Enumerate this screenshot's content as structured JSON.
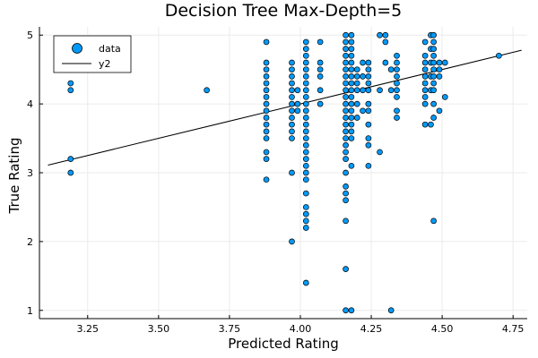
{
  "chart_data": {
    "type": "scatter",
    "title": "Decision Tree Max-Depth=5",
    "xlabel": "Predicted Rating",
    "ylabel": "True Rating",
    "xlim": [
      3.08,
      4.8
    ],
    "ylim": [
      0.88,
      5.12
    ],
    "xticks": [
      3.25,
      3.5,
      3.75,
      4.0,
      4.25,
      4.5,
      4.75
    ],
    "xtick_labels": [
      "3.25",
      "3.50",
      "3.75",
      "4.00",
      "4.25",
      "4.50",
      "4.75"
    ],
    "yticks": [
      1,
      2,
      3,
      4,
      5
    ],
    "ytick_labels": [
      "1",
      "2",
      "3",
      "4",
      "5"
    ],
    "grid": true,
    "legend_position": "top-left",
    "colors": {
      "scatter": "#009AF9",
      "line": "#000000",
      "grid": "#EBEBEB"
    },
    "series": [
      {
        "name": "data",
        "kind": "scatter",
        "points": [
          [
            3.19,
            4.3
          ],
          [
            3.19,
            4.2
          ],
          [
            3.19,
            3.2
          ],
          [
            3.19,
            3.0
          ],
          [
            3.67,
            4.2
          ],
          [
            3.88,
            4.9
          ],
          [
            3.88,
            4.6
          ],
          [
            3.88,
            4.5
          ],
          [
            3.88,
            4.4
          ],
          [
            3.88,
            4.3
          ],
          [
            3.88,
            4.2
          ],
          [
            3.88,
            4.1
          ],
          [
            3.88,
            4.0
          ],
          [
            3.88,
            3.9
          ],
          [
            3.88,
            3.8
          ],
          [
            3.88,
            3.7
          ],
          [
            3.88,
            3.6
          ],
          [
            3.88,
            3.5
          ],
          [
            3.88,
            3.3
          ],
          [
            3.88,
            3.2
          ],
          [
            3.88,
            2.9
          ],
          [
            3.97,
            4.6
          ],
          [
            3.97,
            4.5
          ],
          [
            3.97,
            4.4
          ],
          [
            3.97,
            4.3
          ],
          [
            3.97,
            4.2
          ],
          [
            3.97,
            4.1
          ],
          [
            3.97,
            4.0
          ],
          [
            3.97,
            3.9
          ],
          [
            3.97,
            3.8
          ],
          [
            3.97,
            3.7
          ],
          [
            3.97,
            3.6
          ],
          [
            3.97,
            3.5
          ],
          [
            3.97,
            3.0
          ],
          [
            3.97,
            2.0
          ],
          [
            3.99,
            4.2
          ],
          [
            3.99,
            4.0
          ],
          [
            3.99,
            3.9
          ],
          [
            4.02,
            4.9
          ],
          [
            4.02,
            4.8
          ],
          [
            4.02,
            4.7
          ],
          [
            4.02,
            4.6
          ],
          [
            4.02,
            4.5
          ],
          [
            4.02,
            4.4
          ],
          [
            4.02,
            4.3
          ],
          [
            4.02,
            4.2
          ],
          [
            4.02,
            4.1
          ],
          [
            4.02,
            4.0
          ],
          [
            4.02,
            3.9
          ],
          [
            4.02,
            3.8
          ],
          [
            4.02,
            3.7
          ],
          [
            4.02,
            3.6
          ],
          [
            4.02,
            3.5
          ],
          [
            4.02,
            3.4
          ],
          [
            4.02,
            3.3
          ],
          [
            4.02,
            3.2
          ],
          [
            4.02,
            3.1
          ],
          [
            4.02,
            3.0
          ],
          [
            4.02,
            2.9
          ],
          [
            4.02,
            2.7
          ],
          [
            4.02,
            2.5
          ],
          [
            4.02,
            2.4
          ],
          [
            4.02,
            2.3
          ],
          [
            4.02,
            2.2
          ],
          [
            4.02,
            1.4
          ],
          [
            4.07,
            4.9
          ],
          [
            4.07,
            4.6
          ],
          [
            4.07,
            4.5
          ],
          [
            4.07,
            4.4
          ],
          [
            4.07,
            4.2
          ],
          [
            4.07,
            4.0
          ],
          [
            4.16,
            5.0
          ],
          [
            4.16,
            4.9
          ],
          [
            4.16,
            4.8
          ],
          [
            4.16,
            4.7
          ],
          [
            4.16,
            4.6
          ],
          [
            4.16,
            4.5
          ],
          [
            4.16,
            4.4
          ],
          [
            4.16,
            4.3
          ],
          [
            4.16,
            4.2
          ],
          [
            4.16,
            4.1
          ],
          [
            4.16,
            4.0
          ],
          [
            4.16,
            3.9
          ],
          [
            4.16,
            3.8
          ],
          [
            4.16,
            3.7
          ],
          [
            4.16,
            3.6
          ],
          [
            4.16,
            3.5
          ],
          [
            4.16,
            3.4
          ],
          [
            4.16,
            3.3
          ],
          [
            4.16,
            3.2
          ],
          [
            4.16,
            3.0
          ],
          [
            4.16,
            2.8
          ],
          [
            4.16,
            2.7
          ],
          [
            4.16,
            2.6
          ],
          [
            4.16,
            2.3
          ],
          [
            4.16,
            1.6
          ],
          [
            4.16,
            1.0
          ],
          [
            4.18,
            5.0
          ],
          [
            4.18,
            4.9
          ],
          [
            4.18,
            4.8
          ],
          [
            4.18,
            4.7
          ],
          [
            4.18,
            4.6
          ],
          [
            4.18,
            4.5
          ],
          [
            4.18,
            4.4
          ],
          [
            4.18,
            4.3
          ],
          [
            4.18,
            4.2
          ],
          [
            4.18,
            4.1
          ],
          [
            4.18,
            4.0
          ],
          [
            4.18,
            3.9
          ],
          [
            4.18,
            3.8
          ],
          [
            4.18,
            3.7
          ],
          [
            4.18,
            3.6
          ],
          [
            4.18,
            3.5
          ],
          [
            4.18,
            3.1
          ],
          [
            4.18,
            1.0
          ],
          [
            4.2,
            4.5
          ],
          [
            4.2,
            4.4
          ],
          [
            4.2,
            4.3
          ],
          [
            4.2,
            4.2
          ],
          [
            4.2,
            4.0
          ],
          [
            4.2,
            3.8
          ],
          [
            4.22,
            4.6
          ],
          [
            4.22,
            4.4
          ],
          [
            4.22,
            4.2
          ],
          [
            4.22,
            3.9
          ],
          [
            4.24,
            4.6
          ],
          [
            4.24,
            4.5
          ],
          [
            4.24,
            4.4
          ],
          [
            4.24,
            4.3
          ],
          [
            4.24,
            4.2
          ],
          [
            4.24,
            4.0
          ],
          [
            4.24,
            3.9
          ],
          [
            4.24,
            3.7
          ],
          [
            4.24,
            3.5
          ],
          [
            4.24,
            3.4
          ],
          [
            4.24,
            3.1
          ],
          [
            4.28,
            5.0
          ],
          [
            4.28,
            4.2
          ],
          [
            4.28,
            3.3
          ],
          [
            4.3,
            5.0
          ],
          [
            4.3,
            4.9
          ],
          [
            4.3,
            4.6
          ],
          [
            4.32,
            4.5
          ],
          [
            4.32,
            4.2
          ],
          [
            4.32,
            1.0
          ],
          [
            4.34,
            4.7
          ],
          [
            4.34,
            4.6
          ],
          [
            4.34,
            4.5
          ],
          [
            4.34,
            4.4
          ],
          [
            4.34,
            4.3
          ],
          [
            4.34,
            4.2
          ],
          [
            4.34,
            4.1
          ],
          [
            4.34,
            3.9
          ],
          [
            4.34,
            3.8
          ],
          [
            4.44,
            4.9
          ],
          [
            4.44,
            4.7
          ],
          [
            4.44,
            4.6
          ],
          [
            4.44,
            4.5
          ],
          [
            4.44,
            4.4
          ],
          [
            4.44,
            4.3
          ],
          [
            4.44,
            4.2
          ],
          [
            4.44,
            4.1
          ],
          [
            4.44,
            4.0
          ],
          [
            4.44,
            3.7
          ],
          [
            4.46,
            5.0
          ],
          [
            4.46,
            4.8
          ],
          [
            4.46,
            4.6
          ],
          [
            4.46,
            4.4
          ],
          [
            4.46,
            4.2
          ],
          [
            4.46,
            3.7
          ],
          [
            4.47,
            5.0
          ],
          [
            4.47,
            4.9
          ],
          [
            4.47,
            4.8
          ],
          [
            4.47,
            4.7
          ],
          [
            4.47,
            4.6
          ],
          [
            4.47,
            4.5
          ],
          [
            4.47,
            4.4
          ],
          [
            4.47,
            4.3
          ],
          [
            4.47,
            4.2
          ],
          [
            4.47,
            4.0
          ],
          [
            4.47,
            3.8
          ],
          [
            4.47,
            2.3
          ],
          [
            4.49,
            4.6
          ],
          [
            4.49,
            4.5
          ],
          [
            4.49,
            4.4
          ],
          [
            4.49,
            3.9
          ],
          [
            4.51,
            4.6
          ],
          [
            4.51,
            4.1
          ],
          [
            4.7,
            4.7
          ]
        ]
      },
      {
        "name": "y2",
        "kind": "line",
        "points": [
          [
            3.11,
            3.11
          ],
          [
            4.78,
            4.78
          ]
        ]
      }
    ]
  }
}
